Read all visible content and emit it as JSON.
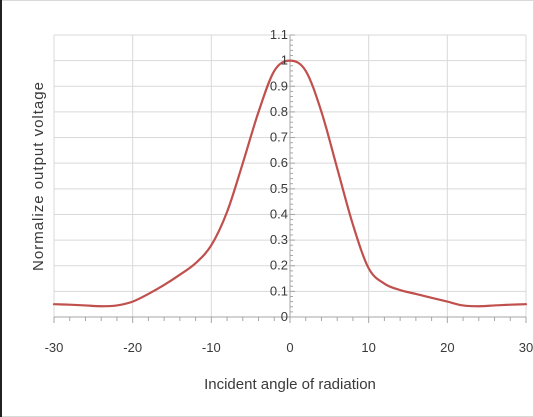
{
  "chart_data": {
    "type": "line",
    "title": "",
    "xlabel": "Incident angle of radiation",
    "ylabel": "Normalize output voltage",
    "xlim": [
      -30,
      30
    ],
    "ylim": [
      0,
      1.1
    ],
    "x_ticks": [
      -30,
      -20,
      -10,
      0,
      10,
      20,
      30
    ],
    "x_tick_labels": [
      "-30",
      "-20",
      "-10",
      "0",
      "10",
      "20",
      "30"
    ],
    "y_ticks": [
      0,
      0.1,
      0.2,
      0.3,
      0.4,
      0.5,
      0.6,
      0.7,
      0.8,
      0.9,
      1,
      1.1
    ],
    "y_tick_labels": [
      "0",
      "0.1",
      "0.2",
      "0.3",
      "0.4",
      "0.5",
      "0.6",
      "0.7",
      "0.8",
      "0.9",
      "1",
      "1.1"
    ],
    "grid": true,
    "legend": "none",
    "series_color": "#c0504d",
    "grid_color": "#d9d9d9",
    "series": [
      {
        "x": [
          -30,
          -28,
          -26,
          -24,
          -22,
          -20,
          -18,
          -16,
          -14,
          -12,
          -10,
          -8,
          -6,
          -4,
          -2,
          0,
          2,
          4,
          6,
          8,
          10,
          12,
          14,
          16,
          18,
          20,
          22,
          24,
          26,
          28,
          30
        ],
        "values": [
          0.05,
          0.048,
          0.045,
          0.042,
          0.045,
          0.06,
          0.09,
          0.125,
          0.165,
          0.21,
          0.28,
          0.41,
          0.6,
          0.8,
          0.96,
          1.0,
          0.96,
          0.8,
          0.58,
          0.36,
          0.19,
          0.13,
          0.105,
          0.09,
          0.075,
          0.06,
          0.045,
          0.042,
          0.045,
          0.048,
          0.05
        ]
      }
    ]
  }
}
